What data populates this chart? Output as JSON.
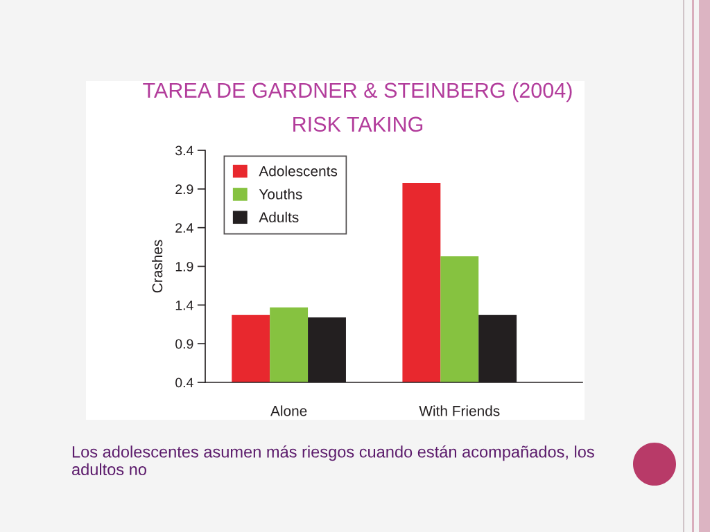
{
  "chart_data": {
    "type": "bar",
    "title": "TAREA DE GARDNER & STEINBERG (2004)",
    "subtitle": "RISK TAKING",
    "ylabel": "Crashes",
    "categories": [
      "Alone",
      "With Friends"
    ],
    "series": [
      {
        "name": "Adolescents",
        "color": "#e8282e",
        "values": [
          1.27,
          2.98
        ]
      },
      {
        "name": "Youths",
        "color": "#86c240",
        "values": [
          1.37,
          2.03
        ]
      },
      {
        "name": "Adults",
        "color": "#231f20",
        "values": [
          1.24,
          1.27
        ]
      }
    ],
    "ylim": [
      0.4,
      3.4
    ],
    "yticks": [
      0.4,
      0.9,
      1.4,
      1.9,
      2.4,
      2.9,
      3.4
    ],
    "legend": "top left",
    "annotations": [
      "Los adolescentes asumen más riesgos cuando están acompañados, los adultos no"
    ]
  }
}
